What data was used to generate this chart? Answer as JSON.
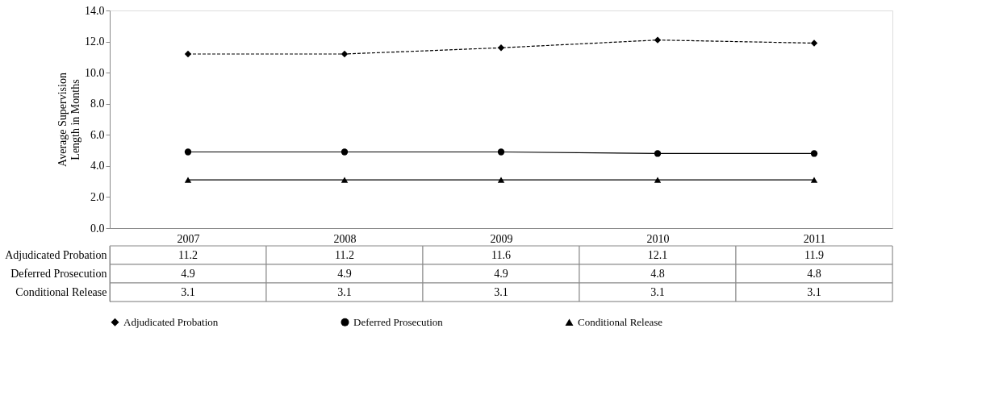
{
  "chart_data": {
    "type": "line",
    "ylabel": "Average Supervision Length in Months",
    "categories": [
      "2007",
      "2008",
      "2009",
      "2010",
      "2011"
    ],
    "series": [
      {
        "name": "Adjudicated Probation",
        "color": "#000000",
        "marker": "diamond",
        "line_style": "dashed",
        "values": [
          11.2,
          11.2,
          11.6,
          12.1,
          11.9
        ]
      },
      {
        "name": "Deferred Prosecution",
        "color": "#000000",
        "marker": "circle",
        "line_style": "solid",
        "values": [
          4.9,
          4.9,
          4.9,
          4.8,
          4.8
        ]
      },
      {
        "name": "Conditional Release",
        "color": "#000000",
        "marker": "triangle",
        "line_style": "solid",
        "values": [
          3.1,
          3.1,
          3.1,
          3.1,
          3.1
        ]
      }
    ],
    "ylim": [
      0,
      14
    ],
    "yticks": [
      {
        "value": 0,
        "label": "0.0"
      },
      {
        "value": 2,
        "label": "2.0"
      },
      {
        "value": 4,
        "label": "4.0"
      },
      {
        "value": 6,
        "label": "6.0"
      },
      {
        "value": 8,
        "label": "8.0"
      },
      {
        "value": 10,
        "label": "10.0"
      },
      {
        "value": 12,
        "label": "12.0"
      },
      {
        "value": 14,
        "label": "14.0"
      }
    ],
    "grid": false,
    "legend": "bottom",
    "data_labels": true
  }
}
